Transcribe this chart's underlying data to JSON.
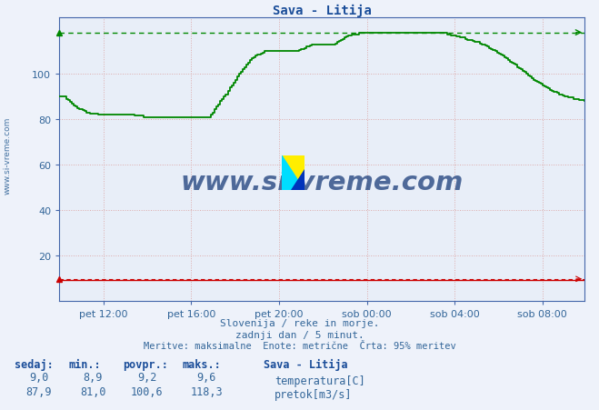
{
  "title": "Sava - Litija",
  "fig_bg_color": "#eef2fa",
  "plot_bg_color": "#e8eef8",
  "grid_color_h": "#ddaaaa",
  "grid_color_v": "#ddaaaa",
  "border_color": "#4466aa",
  "title_color": "#1a4d99",
  "label_color": "#336699",
  "axis_color": "#4466aa",
  "watermark_text": "www.si-vreme.com",
  "watermark_color": "#1a3d7a",
  "side_watermark": "www.si-vreme.com",
  "ylim": [
    0,
    125
  ],
  "yticks": [
    20,
    40,
    60,
    80,
    100
  ],
  "xlim_min": 0,
  "xlim_max": 287,
  "xtick_labels": [
    "pet 12:00",
    "pet 16:00",
    "pet 20:00",
    "sob 00:00",
    "sob 04:00",
    "sob 08:00"
  ],
  "xtick_positions": [
    24,
    72,
    120,
    168,
    216,
    264
  ],
  "subtitle1": "Slovenija / reke in morje.",
  "subtitle2": "zadnji dan / 5 minut.",
  "subtitle3": "Meritve: maksimalne  Enote: metrične  Črta: 95% meritev",
  "temp_color": "#cc0000",
  "flow_color": "#008800",
  "temp_max": 9.6,
  "flow_max": 118.3,
  "legend_title": "Sava - Litija",
  "legend_temp_label": "temperatura[C]",
  "legend_flow_label": "pretok[m3/s]",
  "table_headers": [
    "sedaj:",
    "min.:",
    "povpr.:",
    "maks.:"
  ],
  "table_temp": [
    "9,0",
    "8,9",
    "9,2",
    "9,6"
  ],
  "table_flow": [
    "87,9",
    "81,0",
    "100,6",
    "118,3"
  ]
}
